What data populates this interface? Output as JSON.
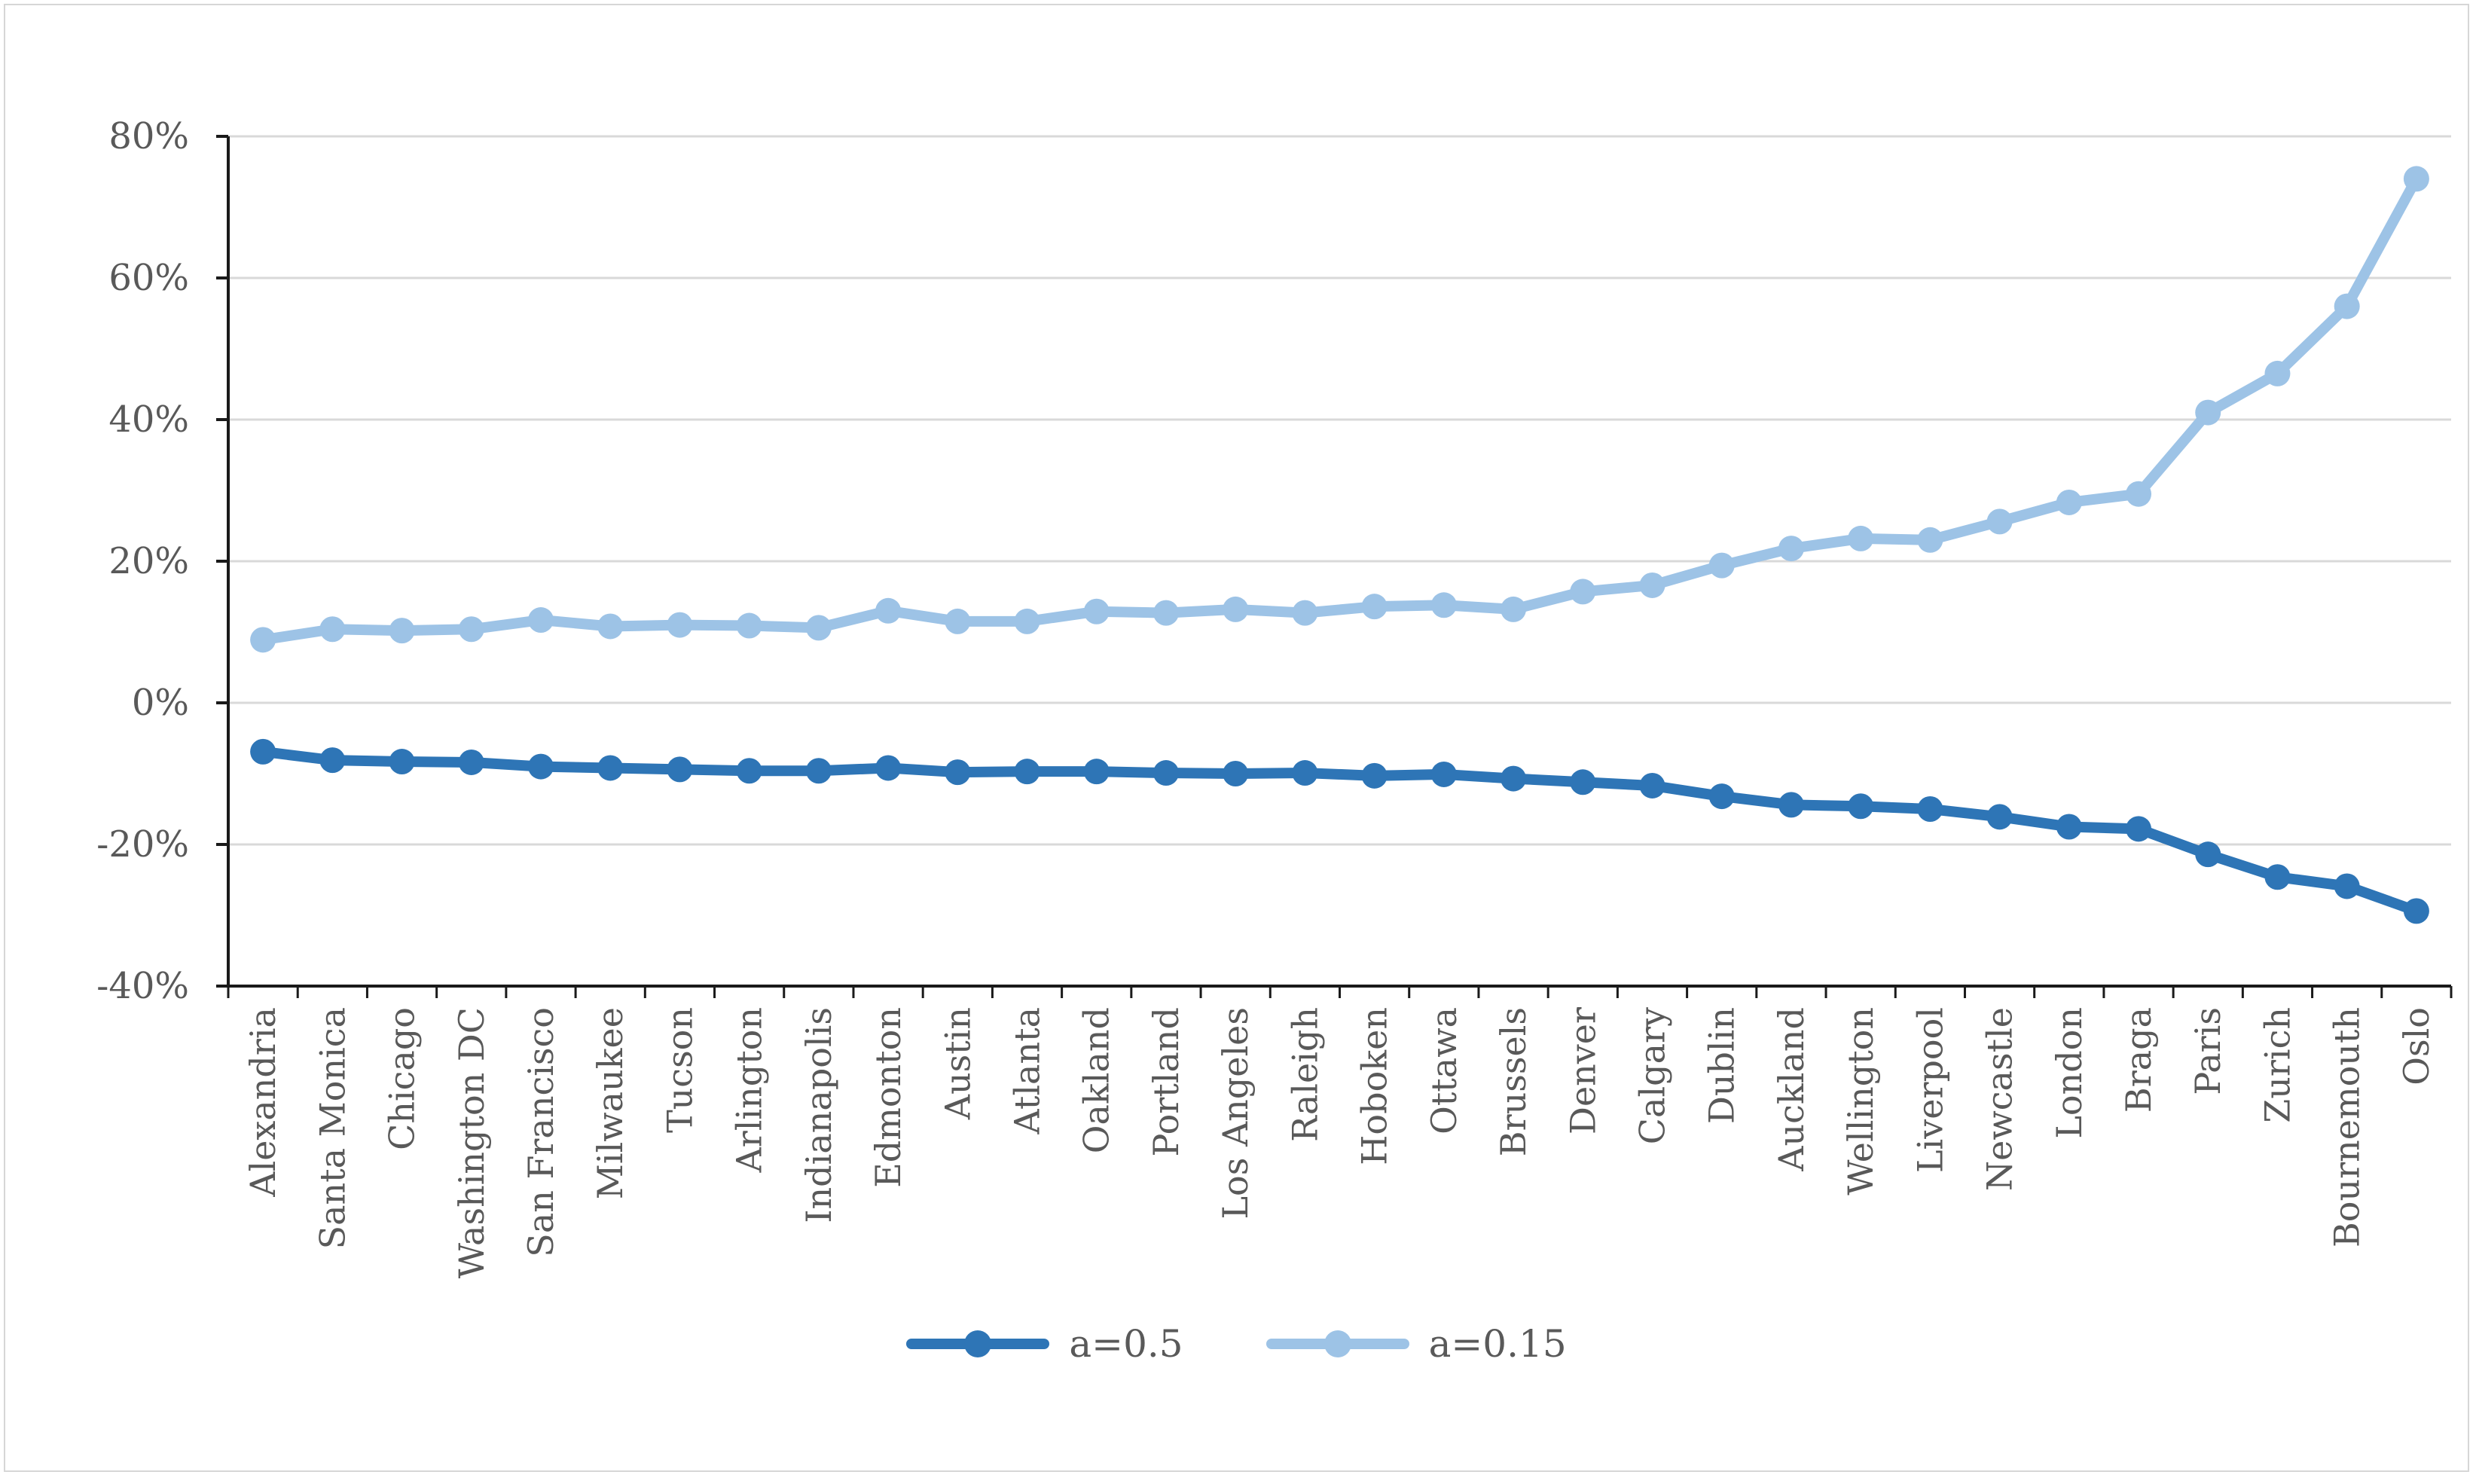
{
  "chart_data": {
    "type": "line",
    "title": "",
    "xlabel": "",
    "ylabel": "",
    "ylim": [
      -40,
      80
    ],
    "grid": "horizontal",
    "legend_position": "bottom",
    "y_ticks": [
      {
        "value": 80,
        "label": "80%"
      },
      {
        "value": 60,
        "label": "60%"
      },
      {
        "value": 40,
        "label": "40%"
      },
      {
        "value": 20,
        "label": "20%"
      },
      {
        "value": 0,
        "label": "0%"
      },
      {
        "value": -20,
        "label": "-20%"
      },
      {
        "value": -40,
        "label": "-40%"
      }
    ],
    "categories": [
      "Alexandria",
      "Santa Monica",
      "Chicago",
      "Washington DC",
      "San Francisco",
      "Milwaukee",
      "Tucson",
      "Arlington",
      "Indianapolis",
      "Edmonton",
      "Austin",
      "Atlanta",
      "Oakland",
      "Portland",
      "Los Angeles",
      "Raleigh",
      "Hoboken",
      "Ottawa",
      "Brussels",
      "Denver",
      "Calgary",
      "Dublin",
      "Auckland",
      "Wellington",
      "Liverpool",
      "Newcastle",
      "London",
      "Braga",
      "Paris",
      "Zurich",
      "Bournemouth",
      "Oslo"
    ],
    "series": [
      {
        "name": "a=0.5",
        "color": "#2E75B6",
        "values": [
          -6.9,
          -8.1,
          -8.3,
          -8.4,
          -9.0,
          -9.2,
          -9.4,
          -9.6,
          -9.6,
          -9.2,
          -9.8,
          -9.7,
          -9.7,
          -9.9,
          -10.0,
          -9.9,
          -10.3,
          -10.1,
          -10.7,
          -11.2,
          -11.7,
          -13.2,
          -14.4,
          -14.6,
          -15.0,
          -16.1,
          -17.5,
          -17.8,
          -21.4,
          -24.6,
          -25.9,
          -29.4
        ]
      },
      {
        "name": "a=0.15",
        "color": "#9DC3E6",
        "values": [
          8.9,
          10.4,
          10.2,
          10.4,
          11.7,
          10.8,
          11.0,
          10.9,
          10.6,
          13.0,
          11.5,
          11.5,
          12.9,
          12.7,
          13.2,
          12.7,
          13.6,
          13.8,
          13.2,
          15.7,
          16.6,
          19.4,
          21.8,
          23.2,
          23.0,
          25.6,
          28.3,
          29.5,
          41.0,
          46.5,
          56.0,
          74.0
        ]
      }
    ],
    "styles": {
      "grid_color": "#D9D9D9",
      "axis_color": "#1a1a1a",
      "tick_label_color": "#595959",
      "background": "#FFFFFF"
    }
  },
  "legend": {
    "item1": "a=0.5",
    "item2": "a=0.15"
  }
}
